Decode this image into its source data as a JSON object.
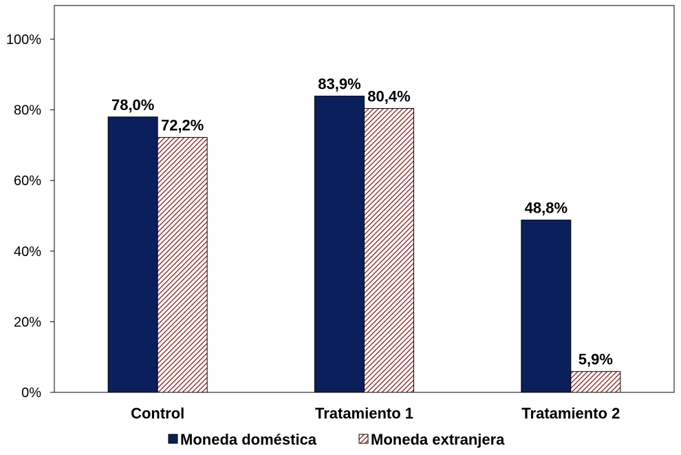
{
  "chart_data": {
    "type": "bar",
    "categories": [
      "Control",
      "Tratamiento 1",
      "Tratamiento 2"
    ],
    "series": [
      {
        "name": "Moneda doméstica",
        "values": [
          78.0,
          83.9,
          48.8
        ],
        "labels": [
          "78,0%",
          "83,9%",
          "48,8%"
        ],
        "color": "#0b1f5c",
        "pattern": "solid"
      },
      {
        "name": "Moneda extranjera",
        "values": [
          72.2,
          80.4,
          5.9
        ],
        "labels": [
          "72,2%",
          "80,4%",
          "5,9%"
        ],
        "color": "#8b1a1a",
        "pattern": "diagonal-hatch"
      }
    ],
    "yticks": [
      "0%",
      "20%",
      "40%",
      "60%",
      "80%",
      "100%"
    ],
    "ylim": [
      0,
      100
    ],
    "grid": false,
    "legend": "bottom"
  }
}
